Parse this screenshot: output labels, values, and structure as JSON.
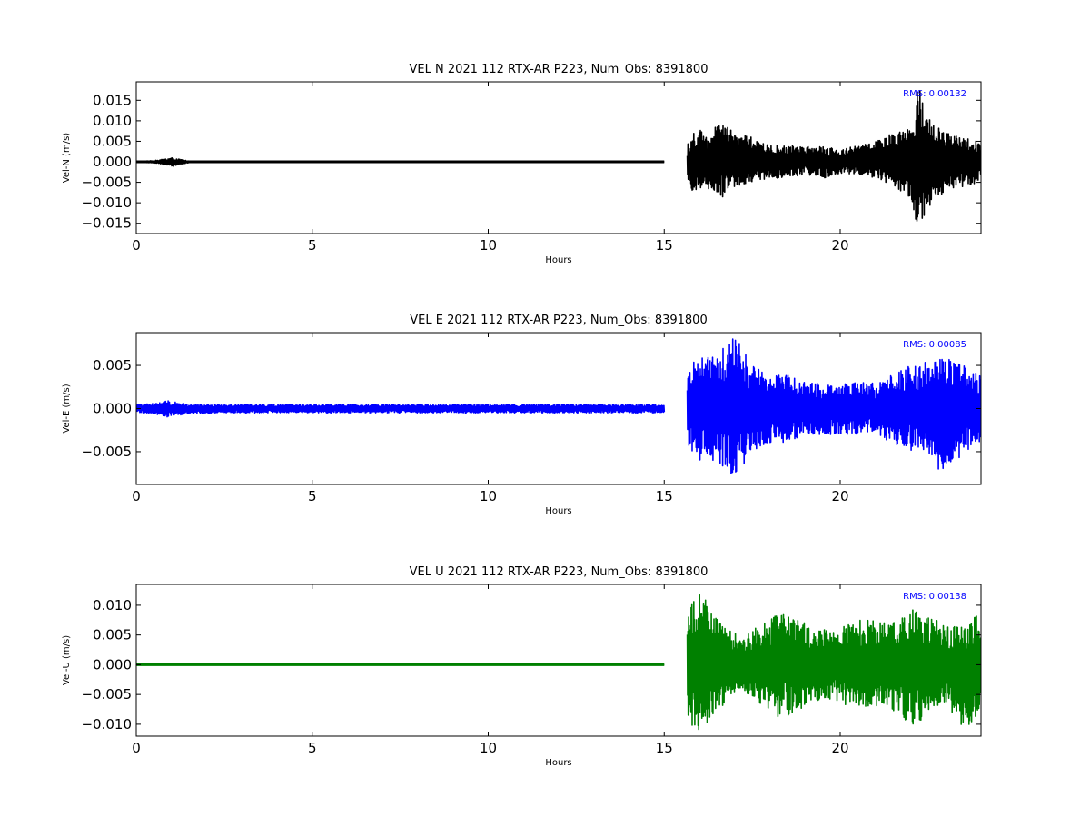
{
  "chart_data": [
    {
      "type": "line",
      "title": "VEL N 2021 112 RTX-AR  P223, Num_Obs: 8391800",
      "xlabel": "Hours",
      "ylabel": "Vel-N (m/s)",
      "xlim": [
        0,
        24
      ],
      "ylim": [
        -0.0175,
        0.0195
      ],
      "xticks": [
        0,
        5,
        10,
        15,
        20
      ],
      "xtick_labels": [
        "0",
        "5",
        "10",
        "15",
        "20"
      ],
      "yticks": [
        -0.015,
        -0.01,
        -0.005,
        0.0,
        0.005,
        0.01,
        0.015
      ],
      "ytick_labels": [
        "−0.015",
        "−0.010",
        "−0.005",
        "0.000",
        "0.005",
        "0.010",
        "0.015"
      ],
      "annotation": "RMS:  0.00132",
      "annotation_color": "#0000ff",
      "color": "#000000",
      "series": [
        {
          "x": [
            0,
            0.5,
            1.0,
            1.5,
            2,
            15,
            15.65,
            15.8,
            16,
            16.3,
            16.6,
            17,
            17.5,
            18,
            18.5,
            19,
            19.5,
            20,
            20.5,
            21,
            21.5,
            22,
            22.2,
            22.5,
            23,
            23.5,
            24
          ],
          "y": [
            0.0,
            0.0003,
            0.001,
            0.0002,
            0.0,
            0.0,
            0.004,
            0.007,
            0.008,
            0.007,
            0.01,
            0.007,
            0.006,
            0.004,
            0.004,
            0.004,
            0.004,
            0.003,
            0.004,
            0.005,
            0.007,
            0.008,
            0.0195,
            0.011,
            0.007,
            0.006,
            0.005
          ],
          "y_low": [
            0.0,
            -0.0003,
            -0.0012,
            -0.0002,
            0.0,
            0.0,
            -0.005,
            -0.007,
            -0.008,
            -0.007,
            -0.009,
            -0.006,
            -0.005,
            -0.004,
            -0.004,
            -0.003,
            -0.004,
            -0.003,
            -0.003,
            -0.004,
            -0.006,
            -0.009,
            -0.0175,
            -0.011,
            -0.007,
            -0.006,
            -0.005
          ]
        }
      ]
    },
    {
      "type": "line",
      "title": "VEL E 2021 112 RTX-AR  P223, Num_Obs: 8391800",
      "xlabel": "Hours",
      "ylabel": "Vel-E (m/s)",
      "xlim": [
        0,
        24
      ],
      "ylim": [
        -0.0088,
        0.0088
      ],
      "xticks": [
        0,
        5,
        10,
        15,
        20
      ],
      "xtick_labels": [
        "0",
        "5",
        "10",
        "15",
        "20"
      ],
      "yticks": [
        -0.005,
        0.0,
        0.005
      ],
      "ytick_labels": [
        "−0.005",
        "0.000",
        "0.005"
      ],
      "annotation": "RMS:  0.00085",
      "annotation_color": "#0000ff",
      "color": "#0000ff",
      "series": [
        {
          "x": [
            0,
            0.5,
            0.9,
            1.5,
            3,
            6,
            9,
            12,
            15,
            15.65,
            15.8,
            16,
            16.5,
            17,
            17.5,
            18,
            18.5,
            19,
            19.5,
            20,
            20.5,
            21,
            21.5,
            22,
            22.5,
            23,
            23.5,
            24
          ],
          "y": [
            0.0005,
            0.0006,
            0.0009,
            0.0005,
            0.0005,
            0.0005,
            0.0005,
            0.0005,
            0.0005,
            0.004,
            0.0055,
            0.006,
            0.006,
            0.0088,
            0.005,
            0.004,
            0.004,
            0.003,
            0.003,
            0.003,
            0.003,
            0.003,
            0.004,
            0.005,
            0.0055,
            0.006,
            0.005,
            0.004
          ],
          "y_low": [
            -0.0005,
            -0.0006,
            -0.001,
            -0.0006,
            -0.0005,
            -0.0005,
            -0.0005,
            -0.0005,
            -0.0005,
            -0.004,
            -0.005,
            -0.006,
            -0.006,
            -0.008,
            -0.005,
            -0.004,
            -0.004,
            -0.003,
            -0.003,
            -0.003,
            -0.003,
            -0.003,
            -0.004,
            -0.005,
            -0.005,
            -0.0085,
            -0.005,
            -0.004
          ]
        }
      ]
    },
    {
      "type": "line",
      "title": "VEL U 2021 112 RTX-AR  P223, Num_Obs: 8391800",
      "xlabel": "Hours",
      "ylabel": "Vel-U (m/s)",
      "xlim": [
        0,
        24
      ],
      "ylim": [
        -0.012,
        0.0135
      ],
      "xticks": [
        0,
        5,
        10,
        15,
        20
      ],
      "xtick_labels": [
        "0",
        "5",
        "10",
        "15",
        "20"
      ],
      "yticks": [
        -0.01,
        -0.005,
        0.0,
        0.005,
        0.01
      ],
      "ytick_labels": [
        "−0.010",
        "−0.005",
        "0.000",
        "0.005",
        "0.010"
      ],
      "annotation": "RMS:  0.00138",
      "annotation_color": "#0000ff",
      "color": "#008000",
      "series": [
        {
          "x": [
            0,
            5,
            10,
            15,
            15.65,
            15.8,
            16,
            16.3,
            16.8,
            17.3,
            17.8,
            18.3,
            18.8,
            19.3,
            19.8,
            20.3,
            20.8,
            21.3,
            21.8,
            22.1,
            22.5,
            23,
            23.5,
            24
          ],
          "y": [
            0.0,
            0.0,
            0.0,
            0.0,
            0.008,
            0.0105,
            0.0135,
            0.009,
            0.006,
            0.005,
            0.007,
            0.01,
            0.008,
            0.006,
            0.006,
            0.007,
            0.008,
            0.007,
            0.009,
            0.01,
            0.008,
            0.007,
            0.007,
            0.009
          ],
          "y_low": [
            0.0,
            0.0,
            0.0,
            0.0,
            -0.008,
            -0.0105,
            -0.012,
            -0.009,
            -0.006,
            -0.005,
            -0.007,
            -0.009,
            -0.008,
            -0.006,
            -0.006,
            -0.007,
            -0.007,
            -0.007,
            -0.009,
            -0.011,
            -0.008,
            -0.007,
            -0.011,
            -0.008
          ]
        }
      ]
    }
  ]
}
